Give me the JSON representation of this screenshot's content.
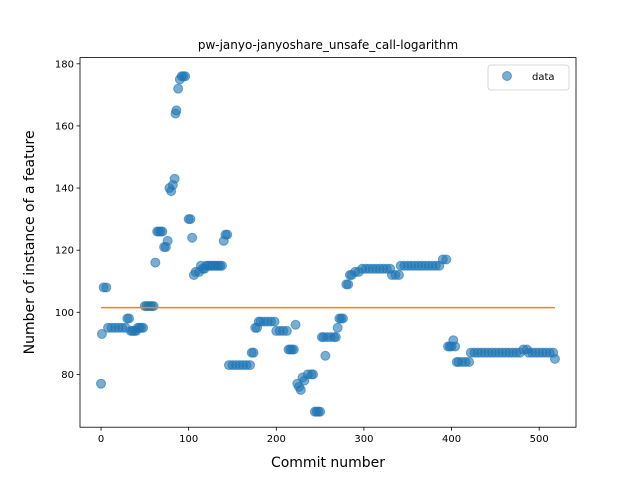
{
  "chart_data": {
    "type": "scatter",
    "title": "pw-janyo-janyoshare_unsafe_call-logarithm",
    "xlabel": "Commit number",
    "ylabel": "Number of instance of a feature",
    "xlim": [
      -24,
      542
    ],
    "ylim": [
      63,
      182
    ],
    "xticks": [
      0,
      100,
      200,
      300,
      400,
      500
    ],
    "yticks": [
      80,
      100,
      120,
      140,
      160,
      180
    ],
    "grid": false,
    "legend_position": "top-right",
    "colors": {
      "data": "#1f77b4",
      "fit": "#ff7f0e"
    },
    "series": [
      {
        "name": "data",
        "type": "scatter",
        "points": [
          [
            0,
            77
          ],
          [
            1,
            93
          ],
          [
            3,
            108
          ],
          [
            6,
            108
          ],
          [
            8,
            95
          ],
          [
            12,
            95
          ],
          [
            16,
            95
          ],
          [
            20,
            95
          ],
          [
            24,
            95
          ],
          [
            28,
            95
          ],
          [
            30,
            98
          ],
          [
            32,
            98
          ],
          [
            34,
            94
          ],
          [
            36,
            94
          ],
          [
            38,
            94
          ],
          [
            40,
            94
          ],
          [
            42,
            95
          ],
          [
            44,
            95
          ],
          [
            46,
            95
          ],
          [
            48,
            95
          ],
          [
            50,
            102
          ],
          [
            52,
            102
          ],
          [
            54,
            102
          ],
          [
            56,
            102
          ],
          [
            58,
            102
          ],
          [
            60,
            102
          ],
          [
            62,
            116
          ],
          [
            64,
            126
          ],
          [
            66,
            126
          ],
          [
            68,
            126
          ],
          [
            70,
            126
          ],
          [
            72,
            121
          ],
          [
            74,
            121
          ],
          [
            76,
            123
          ],
          [
            78,
            140
          ],
          [
            80,
            139
          ],
          [
            82,
            141
          ],
          [
            84,
            143
          ],
          [
            85,
            164
          ],
          [
            86,
            165
          ],
          [
            88,
            172
          ],
          [
            90,
            175
          ],
          [
            92,
            176
          ],
          [
            94,
            176
          ],
          [
            96,
            176
          ],
          [
            100,
            130
          ],
          [
            102,
            130
          ],
          [
            104,
            124
          ],
          [
            106,
            112
          ],
          [
            108,
            113
          ],
          [
            112,
            113
          ],
          [
            114,
            115
          ],
          [
            116,
            114
          ],
          [
            118,
            114
          ],
          [
            120,
            115
          ],
          [
            122,
            115
          ],
          [
            124,
            115
          ],
          [
            126,
            115
          ],
          [
            128,
            115
          ],
          [
            130,
            115
          ],
          [
            132,
            115
          ],
          [
            134,
            115
          ],
          [
            136,
            115
          ],
          [
            138,
            115
          ],
          [
            140,
            123
          ],
          [
            142,
            125
          ],
          [
            144,
            125
          ],
          [
            146,
            83
          ],
          [
            150,
            83
          ],
          [
            154,
            83
          ],
          [
            158,
            83
          ],
          [
            162,
            83
          ],
          [
            166,
            83
          ],
          [
            170,
            83
          ],
          [
            172,
            87
          ],
          [
            174,
            87
          ],
          [
            176,
            95
          ],
          [
            178,
            95
          ],
          [
            180,
            97
          ],
          [
            182,
            97
          ],
          [
            186,
            97
          ],
          [
            190,
            97
          ],
          [
            194,
            97
          ],
          [
            198,
            97
          ],
          [
            200,
            94
          ],
          [
            204,
            94
          ],
          [
            208,
            94
          ],
          [
            212,
            94
          ],
          [
            214,
            88
          ],
          [
            216,
            88
          ],
          [
            218,
            88
          ],
          [
            220,
            88
          ],
          [
            222,
            96
          ],
          [
            224,
            77
          ],
          [
            226,
            76
          ],
          [
            228,
            75
          ],
          [
            230,
            79
          ],
          [
            232,
            78
          ],
          [
            236,
            80
          ],
          [
            240,
            80
          ],
          [
            242,
            80
          ],
          [
            244,
            68
          ],
          [
            246,
            68
          ],
          [
            248,
            68
          ],
          [
            250,
            68
          ],
          [
            252,
            92
          ],
          [
            254,
            92
          ],
          [
            256,
            86
          ],
          [
            258,
            92
          ],
          [
            262,
            92
          ],
          [
            266,
            92
          ],
          [
            268,
            92
          ],
          [
            270,
            95
          ],
          [
            272,
            98
          ],
          [
            274,
            98
          ],
          [
            276,
            98
          ],
          [
            280,
            109
          ],
          [
            282,
            109
          ],
          [
            284,
            112
          ],
          [
            286,
            112
          ],
          [
            290,
            113
          ],
          [
            294,
            113
          ],
          [
            298,
            114
          ],
          [
            302,
            114
          ],
          [
            306,
            114
          ],
          [
            310,
            114
          ],
          [
            314,
            114
          ],
          [
            318,
            114
          ],
          [
            322,
            114
          ],
          [
            326,
            114
          ],
          [
            330,
            114
          ],
          [
            332,
            112
          ],
          [
            336,
            112
          ],
          [
            340,
            112
          ],
          [
            342,
            115
          ],
          [
            346,
            115
          ],
          [
            350,
            115
          ],
          [
            354,
            115
          ],
          [
            358,
            115
          ],
          [
            362,
            115
          ],
          [
            366,
            115
          ],
          [
            370,
            115
          ],
          [
            374,
            115
          ],
          [
            378,
            115
          ],
          [
            382,
            115
          ],
          [
            386,
            115
          ],
          [
            390,
            117
          ],
          [
            394,
            117
          ],
          [
            396,
            89
          ],
          [
            398,
            89
          ],
          [
            400,
            89
          ],
          [
            402,
            91
          ],
          [
            404,
            89
          ],
          [
            406,
            84
          ],
          [
            408,
            84
          ],
          [
            412,
            84
          ],
          [
            416,
            84
          ],
          [
            420,
            84
          ],
          [
            422,
            87
          ],
          [
            426,
            87
          ],
          [
            430,
            87
          ],
          [
            434,
            87
          ],
          [
            438,
            87
          ],
          [
            442,
            87
          ],
          [
            446,
            87
          ],
          [
            450,
            87
          ],
          [
            454,
            87
          ],
          [
            458,
            87
          ],
          [
            462,
            87
          ],
          [
            466,
            87
          ],
          [
            470,
            87
          ],
          [
            474,
            87
          ],
          [
            478,
            87
          ],
          [
            482,
            88
          ],
          [
            486,
            88
          ],
          [
            488,
            87
          ],
          [
            492,
            87
          ],
          [
            496,
            87
          ],
          [
            500,
            87
          ],
          [
            504,
            87
          ],
          [
            508,
            87
          ],
          [
            512,
            87
          ],
          [
            516,
            87
          ],
          [
            518,
            85
          ]
        ]
      },
      {
        "name": "",
        "type": "line",
        "points": [
          [
            0,
            101.5
          ],
          [
            518,
            101.5
          ]
        ]
      }
    ]
  }
}
